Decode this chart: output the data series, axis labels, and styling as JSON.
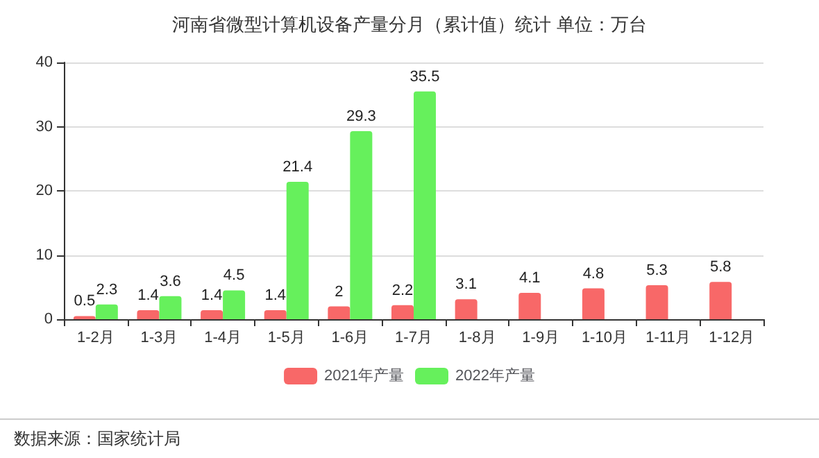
{
  "chart_data": {
    "type": "bar",
    "title": "河南省微型计算机设备产量分月（累计值）统计 单位：万台",
    "categories": [
      "1-2月",
      "1-3月",
      "1-4月",
      "1-5月",
      "1-6月",
      "1-7月",
      "1-8月",
      "1-9月",
      "1-10月",
      "1-11月",
      "1-12月"
    ],
    "series": [
      {
        "name": "2021年产量",
        "color": "#f86868",
        "values": [
          0.5,
          1.4,
          1.4,
          1.4,
          2,
          2.2,
          3.1,
          4.1,
          4.8,
          5.3,
          5.8
        ]
      },
      {
        "name": "2022年产量",
        "color": "#66f05c",
        "values": [
          2.3,
          3.6,
          4.5,
          21.4,
          29.3,
          35.5,
          null,
          null,
          null,
          null,
          null
        ]
      }
    ],
    "ylim": [
      0,
      40
    ],
    "yticks": [
      0,
      10,
      20,
      30,
      40
    ],
    "grid": "y",
    "legend": "bottom",
    "data_labels": true,
    "annotations": [
      "数据来源：国家统计局"
    ]
  }
}
